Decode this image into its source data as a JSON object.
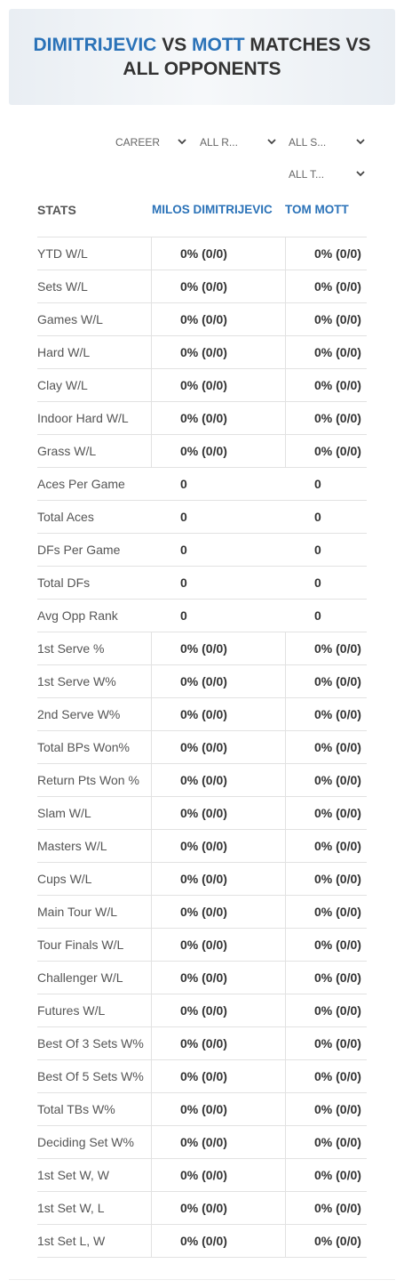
{
  "header": {
    "title_parts": [
      "DIMITRIJEVIC",
      "VS",
      "MOTT",
      "MATCHES VS ALL OPPONENTS"
    ]
  },
  "filters": [
    "CAREER",
    "ALL R...",
    "ALL S...",
    "ALL T..."
  ],
  "table": {
    "columns": [
      "STATS",
      "MILOS DIMITRIJEVIC",
      "TOM MOTT"
    ],
    "rows": [
      [
        "YTD W/L",
        "0% (0/0)",
        "0% (0/0)"
      ],
      [
        "Sets W/L",
        "0% (0/0)",
        "0% (0/0)"
      ],
      [
        "Games W/L",
        "0% (0/0)",
        "0% (0/0)"
      ],
      [
        "Hard W/L",
        "0% (0/0)",
        "0% (0/0)"
      ],
      [
        "Clay W/L",
        "0% (0/0)",
        "0% (0/0)"
      ],
      [
        "Indoor Hard W/L",
        "0% (0/0)",
        "0% (0/0)"
      ],
      [
        "Grass W/L",
        "0% (0/0)",
        "0% (0/0)"
      ],
      [
        "Aces Per Game",
        "0",
        "0"
      ],
      [
        "Total Aces",
        "0",
        "0"
      ],
      [
        "DFs Per Game",
        "0",
        "0"
      ],
      [
        "Total DFs",
        "0",
        "0"
      ],
      [
        "Avg Opp Rank",
        "0",
        "0"
      ],
      [
        "1st Serve %",
        "0% (0/0)",
        "0% (0/0)"
      ],
      [
        "1st Serve W%",
        "0% (0/0)",
        "0% (0/0)"
      ],
      [
        "2nd Serve W%",
        "0% (0/0)",
        "0% (0/0)"
      ],
      [
        "Total BPs Won%",
        "0% (0/0)",
        "0% (0/0)"
      ],
      [
        "Return Pts Won %",
        "0% (0/0)",
        "0% (0/0)"
      ],
      [
        "Slam W/L",
        "0% (0/0)",
        "0% (0/0)"
      ],
      [
        "Masters W/L",
        "0% (0/0)",
        "0% (0/0)"
      ],
      [
        "Cups W/L",
        "0% (0/0)",
        "0% (0/0)"
      ],
      [
        "Main Tour W/L",
        "0% (0/0)",
        "0% (0/0)"
      ],
      [
        "Tour Finals W/L",
        "0% (0/0)",
        "0% (0/0)"
      ],
      [
        "Challenger W/L",
        "0% (0/0)",
        "0% (0/0)"
      ],
      [
        "Futures W/L",
        "0% (0/0)",
        "0% (0/0)"
      ],
      [
        "Best Of 3 Sets W%",
        "0% (0/0)",
        "0% (0/0)"
      ],
      [
        "Best Of 5 Sets W%",
        "0% (0/0)",
        "0% (0/0)"
      ],
      [
        "Total TBs W%",
        "0% (0/0)",
        "0% (0/0)"
      ],
      [
        "Deciding Set W%",
        "0% (0/0)",
        "0% (0/0)"
      ],
      [
        "1st Set W, W",
        "0% (0/0)",
        "0% (0/0)"
      ],
      [
        "1st Set W, L",
        "0% (0/0)",
        "0% (0/0)"
      ],
      [
        "1st Set L, W",
        "0% (0/0)",
        "0% (0/0)"
      ]
    ]
  }
}
